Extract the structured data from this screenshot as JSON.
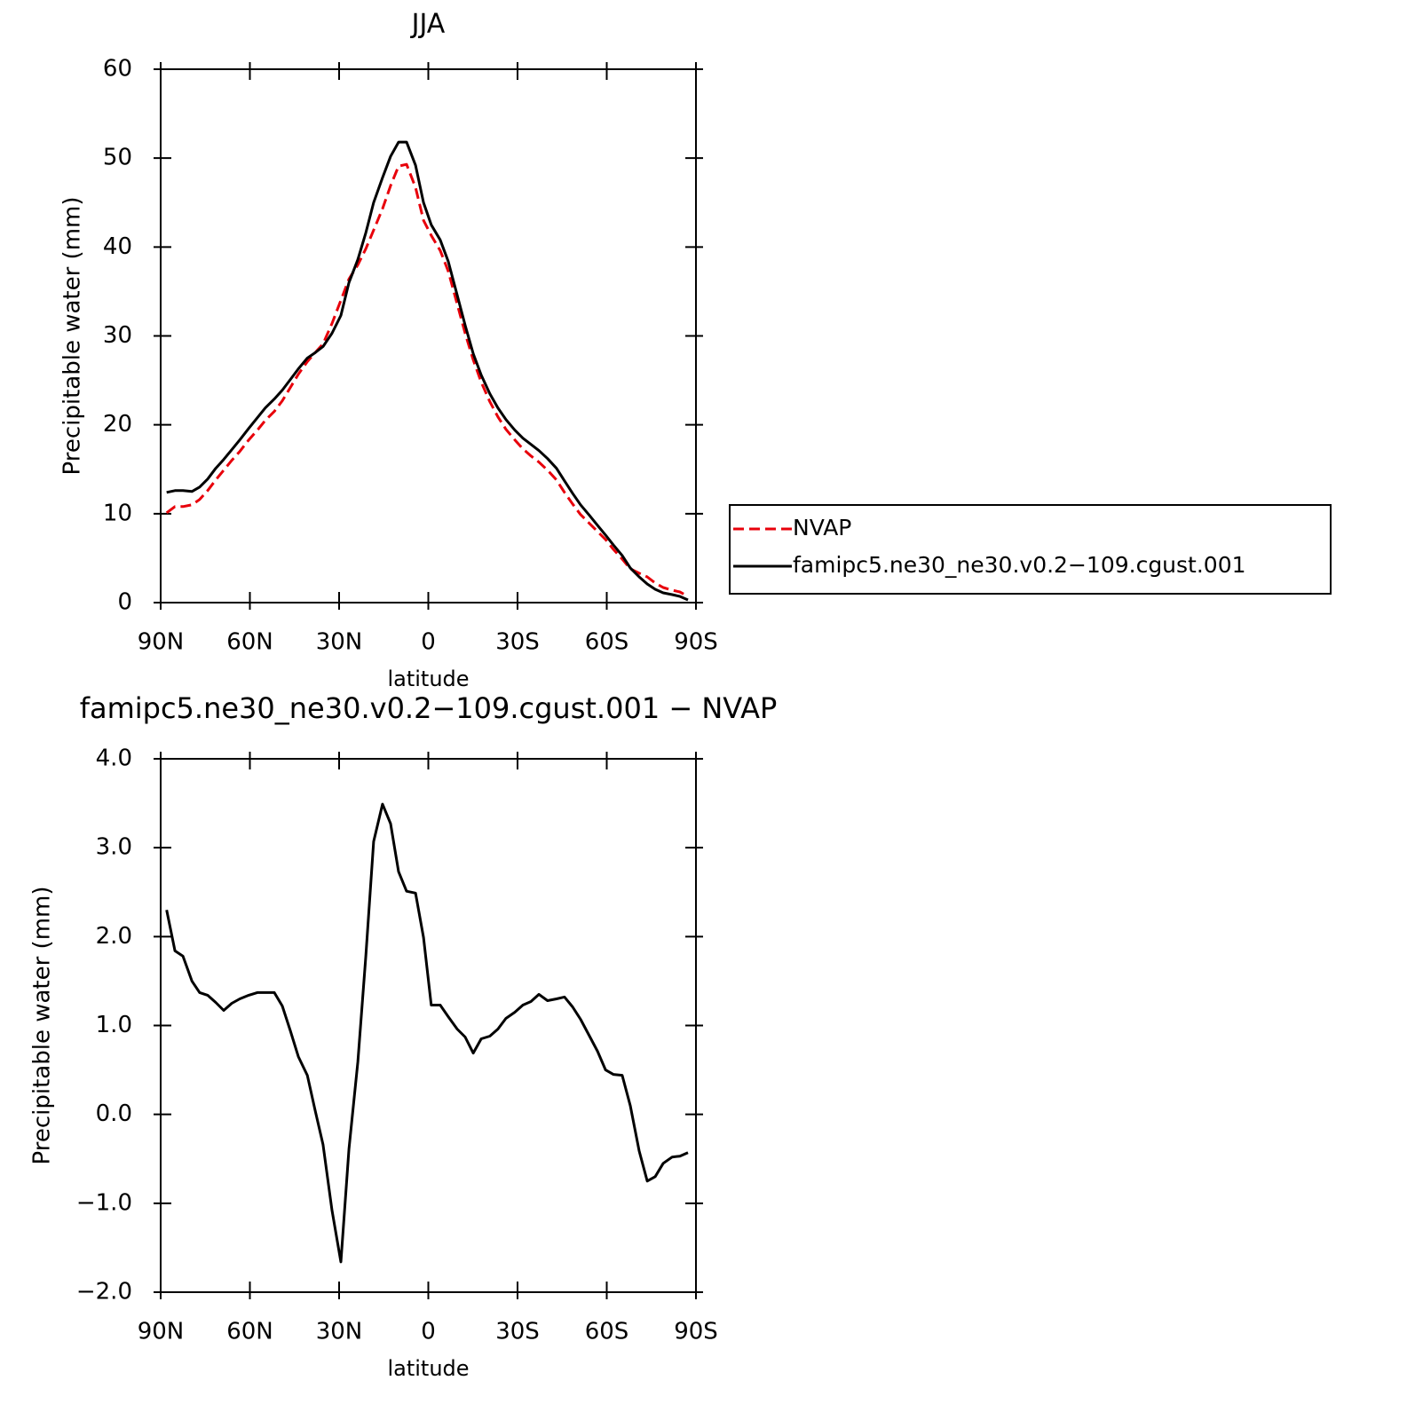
{
  "chart_data": [
    {
      "type": "line",
      "title": "JJA",
      "xlabel": "latitude",
      "ylabel": "Precipitable water (mm)",
      "x": [
        88,
        85.2,
        82.5,
        79.5,
        76.9,
        74.2,
        71.5,
        68.8,
        66.1,
        63.4,
        60.4,
        57.5,
        54.8,
        51.8,
        49.1,
        46.4,
        43.7,
        40.7,
        38.1,
        35.4,
        32.4,
        29.4,
        26.7,
        23.7,
        21.0,
        18.4,
        15.4,
        12.7,
        10.0,
        7.3,
        4.3,
        1.6,
        -1.0,
        -4.0,
        -6.7,
        -9.7,
        -12.4,
        -15.1,
        -17.8,
        -20.7,
        -23.4,
        -26.1,
        -29.1,
        -31.8,
        -34.5,
        -37.2,
        -40.1,
        -43.1,
        -45.8,
        -48.5,
        -51.2,
        -54.2,
        -56.9,
        -59.6,
        -62.2,
        -65.2,
        -67.9,
        -70.9,
        -73.6,
        -76.3,
        -79.0,
        -82.0,
        -84.6,
        -87.3
      ],
      "series": [
        {
          "name": "NVAP",
          "color": "#e8000b",
          "style": "dashed",
          "values": [
            10.1,
            10.8,
            10.8,
            11.0,
            11.6,
            12.6,
            13.8,
            14.9,
            16.0,
            17.0,
            18.3,
            19.4,
            20.5,
            21.5,
            22.7,
            24.2,
            25.7,
            27.1,
            28.1,
            29.1,
            31.4,
            34.0,
            36.4,
            38.0,
            39.8,
            41.9,
            44.3,
            46.9,
            49.1,
            49.3,
            46.7,
            43.0,
            41.3,
            39.6,
            37.3,
            33.6,
            30.3,
            27.3,
            24.8,
            22.6,
            20.9,
            19.5,
            18.3,
            17.3,
            16.5,
            15.8,
            14.9,
            13.8,
            12.4,
            11.1,
            9.9,
            8.9,
            8.0,
            7.1,
            6.0,
            4.9,
            3.8,
            3.3,
            2.9,
            2.2,
            1.7,
            1.4,
            1.2,
            0.7
          ]
        },
        {
          "name": "famipc5.ne30_ne30.v0.2−109.cgust.001",
          "color": "#000000",
          "style": "solid",
          "values": [
            12.4,
            12.6,
            12.6,
            12.5,
            13.0,
            13.9,
            15.1,
            16.1,
            17.2,
            18.3,
            19.6,
            20.8,
            21.9,
            22.9,
            23.9,
            25.1,
            26.3,
            27.5,
            28.1,
            28.8,
            30.3,
            32.3,
            36.0,
            38.6,
            41.6,
            45.0,
            47.8,
            50.2,
            51.8,
            51.8,
            49.2,
            45.0,
            42.5,
            40.8,
            38.4,
            34.6,
            31.2,
            28.0,
            25.6,
            23.5,
            21.9,
            20.6,
            19.4,
            18.5,
            17.8,
            17.1,
            16.2,
            15.1,
            13.7,
            12.3,
            11.0,
            9.8,
            8.7,
            7.6,
            6.5,
            5.3,
            3.9,
            2.9,
            2.1,
            1.5,
            1.1,
            0.9,
            0.7,
            0.3
          ]
        }
      ],
      "xlim": [
        90,
        -90
      ],
      "xticks": [
        {
          "value": 90,
          "label": "90N"
        },
        {
          "value": 60,
          "label": "60N"
        },
        {
          "value": 30,
          "label": "30N"
        },
        0,
        {
          "value": -30,
          "label": "30S"
        },
        {
          "value": -60,
          "label": "60S"
        },
        {
          "value": -90,
          "label": "90S"
        }
      ],
      "ylim": [
        0,
        60
      ],
      "yticks": [
        0,
        10,
        20,
        30,
        40,
        50,
        60
      ],
      "legend": "right"
    },
    {
      "type": "line",
      "title": "famipc5.ne30_ne30.v0.2−109.cgust.001  −  NVAP",
      "xlabel": "latitude",
      "ylabel": "Precipitable water (mm)",
      "x": [
        88,
        85.2,
        82.5,
        79.5,
        76.9,
        74.2,
        71.5,
        68.8,
        66.1,
        63.4,
        60.4,
        57.5,
        54.8,
        51.8,
        49.1,
        46.4,
        43.7,
        40.7,
        38.1,
        35.4,
        32.4,
        29.4,
        26.7,
        23.7,
        21.0,
        18.4,
        15.4,
        12.7,
        10.0,
        7.3,
        4.3,
        1.6,
        -1.0,
        -4.0,
        -6.7,
        -9.7,
        -12.4,
        -15.1,
        -17.8,
        -20.7,
        -23.4,
        -26.1,
        -29.1,
        -31.8,
        -34.5,
        -37.2,
        -40.1,
        -43.1,
        -45.8,
        -48.5,
        -51.2,
        -54.2,
        -56.9,
        -59.6,
        -62.2,
        -65.2,
        -67.9,
        -70.9,
        -73.6,
        -76.3,
        -79.0,
        -82.0,
        -84.6,
        -87.3
      ],
      "series": [
        {
          "color": "#000000",
          "style": "solid",
          "values": [
            2.3,
            1.84,
            1.78,
            1.5,
            1.37,
            1.34,
            1.26,
            1.17,
            1.25,
            1.3,
            1.34,
            1.37,
            1.37,
            1.37,
            1.22,
            0.94,
            0.65,
            0.44,
            0.05,
            -0.34,
            -1.08,
            -1.66,
            -0.39,
            0.59,
            1.78,
            3.07,
            3.49,
            3.27,
            2.73,
            2.51,
            2.49,
            1.99,
            1.23,
            1.23,
            1.1,
            0.96,
            0.87,
            0.69,
            0.85,
            0.88,
            0.96,
            1.08,
            1.15,
            1.23,
            1.27,
            1.35,
            1.28,
            1.3,
            1.32,
            1.21,
            1.07,
            0.88,
            0.71,
            0.5,
            0.45,
            0.44,
            0.1,
            -0.41,
            -0.75,
            -0.7,
            -0.55,
            -0.48,
            -0.47,
            -0.43
          ]
        }
      ],
      "xlim": [
        90,
        -90
      ],
      "xticks": [
        {
          "value": 90,
          "label": "90N"
        },
        {
          "value": 60,
          "label": "60N"
        },
        {
          "value": 30,
          "label": "30N"
        },
        0,
        {
          "value": -30,
          "label": "30S"
        },
        {
          "value": -60,
          "label": "60S"
        },
        {
          "value": -90,
          "label": "90S"
        }
      ],
      "ylim": [
        -2,
        4
      ],
      "yticks": [
        {
          "value": -2,
          "label": "−2.0"
        },
        {
          "value": -1,
          "label": "−1.0"
        },
        {
          "value": 0,
          "label": "0.0"
        },
        {
          "value": 1,
          "label": "1.0"
        },
        {
          "value": 2,
          "label": "2.0"
        },
        {
          "value": 3,
          "label": "3.0"
        },
        {
          "value": 4,
          "label": "4.0"
        }
      ]
    }
  ]
}
